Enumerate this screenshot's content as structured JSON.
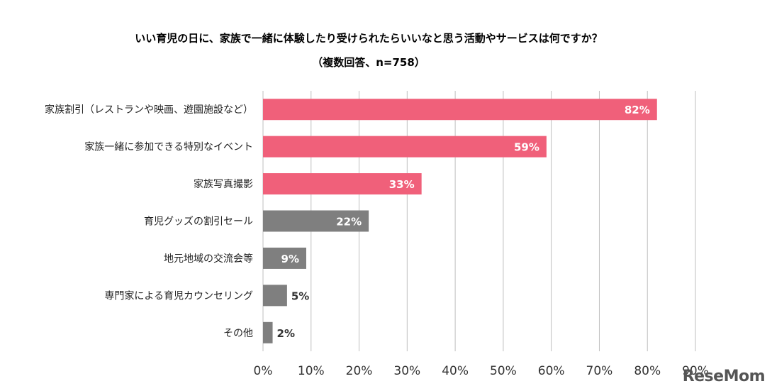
{
  "chart_data": {
    "type": "bar",
    "orientation": "horizontal",
    "title": "いい育児の日に、家族で一緒に体験したり受けられたらいいなと思う活動やサービスは何ですか？",
    "subtitle": "（複数回答、n=758）",
    "categories": [
      "家族割引（レストランや映画、遊園施設など）",
      "家族一緒に参加できる特別なイベント",
      "家族写真撮影",
      "育児グッズの割引セール",
      "地元地域の交流会等",
      "専門家による育児カウンセリング",
      "その他"
    ],
    "values": [
      82,
      59,
      33,
      22,
      9,
      5,
      2
    ],
    "value_labels": [
      "82%",
      "59%",
      "33%",
      "22%",
      "9%",
      "5%",
      "2%"
    ],
    "bar_colors": [
      "#f0607a",
      "#f0607a",
      "#f0607a",
      "#7f7f7f",
      "#7f7f7f",
      "#7f7f7f",
      "#7f7f7f"
    ],
    "xlim": [
      0,
      90
    ],
    "xticks": [
      "0%",
      "10%",
      "20%",
      "30%",
      "40%",
      "50%",
      "60%",
      "70%",
      "80%",
      "90%"
    ],
    "grid": true
  },
  "watermark": "ReseMom"
}
